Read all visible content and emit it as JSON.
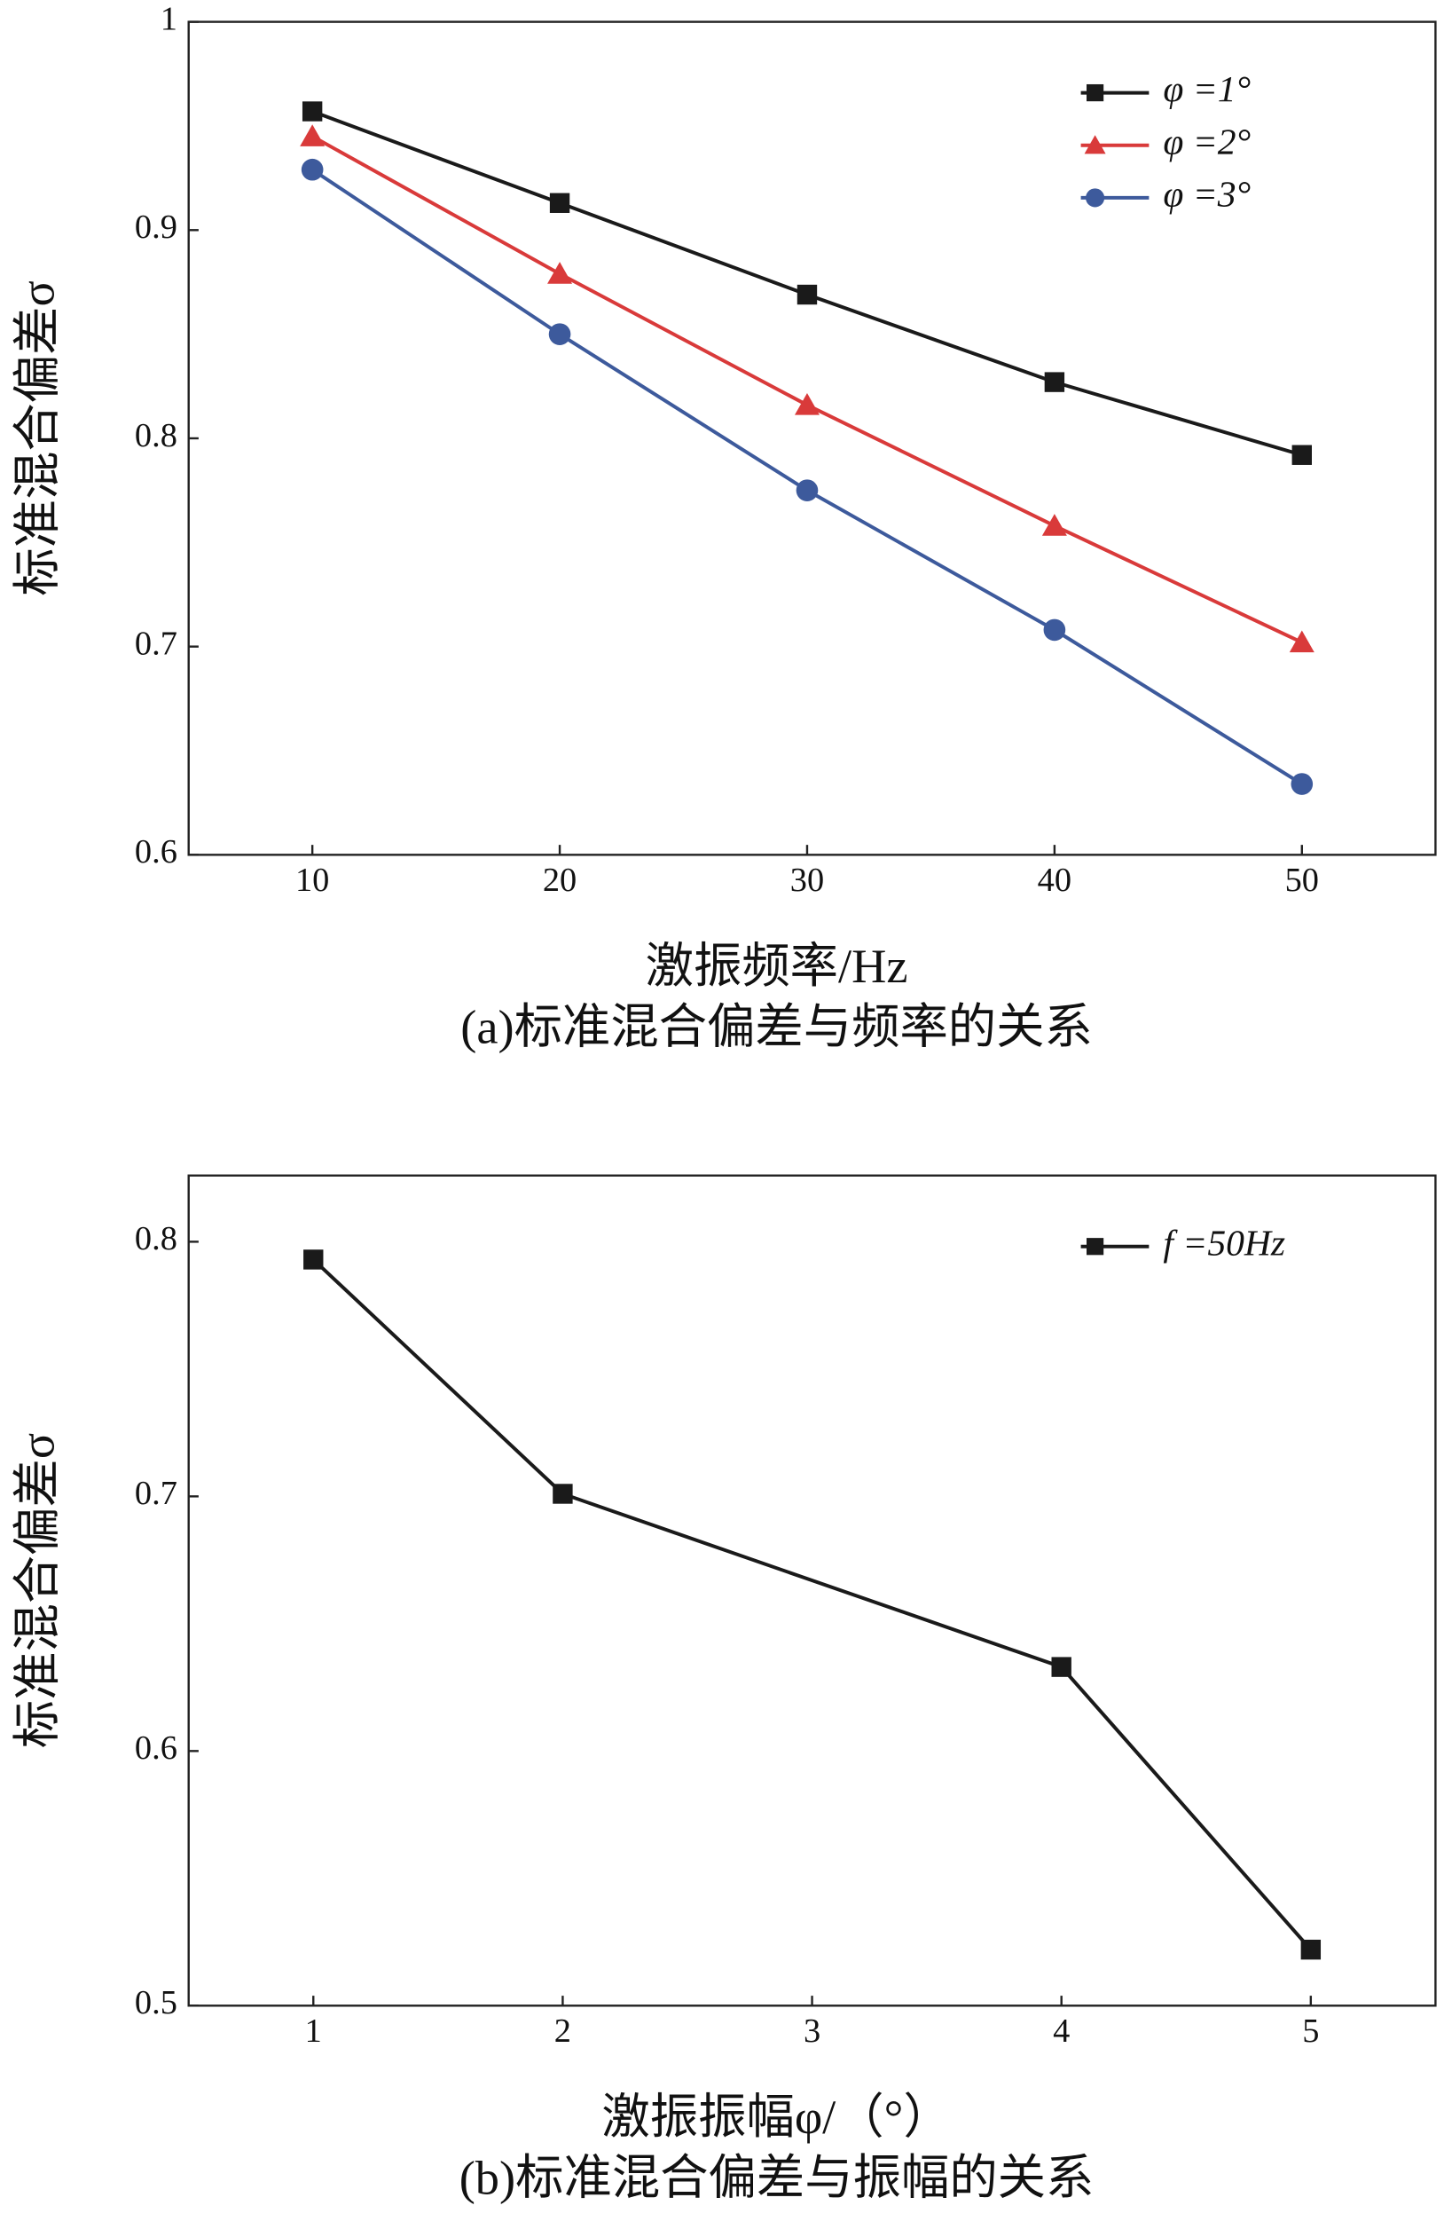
{
  "chart_data": [
    {
      "type": "line",
      "caption": "(a)标准混合偏差与频率的关系",
      "x_label": "激振频率/Hz",
      "y_label": "标准混合偏差σ",
      "x": [
        10,
        20,
        30,
        40,
        50
      ],
      "xlim": [
        5,
        55.4
      ],
      "xticks": [
        10,
        20,
        30,
        40,
        50
      ],
      "ylim": [
        0.6,
        1.0
      ],
      "yticks": [
        0.6,
        0.7,
        0.8,
        0.9,
        1.0
      ],
      "legend": "upper right",
      "series": [
        {
          "name": "φ =1°",
          "color": "#1a1a1a",
          "marker": "square",
          "values": [
            0.957,
            0.913,
            0.869,
            0.827,
            0.792
          ]
        },
        {
          "name": "φ =2°",
          "color": "#d93a3a",
          "marker": "triangle",
          "values": [
            0.945,
            0.879,
            0.816,
            0.758,
            0.702
          ]
        },
        {
          "name": "φ =3°",
          "color": "#3d5a9c",
          "marker": "circle",
          "values": [
            0.929,
            0.85,
            0.775,
            0.708,
            0.634
          ]
        }
      ]
    },
    {
      "type": "line",
      "caption": "(b)标准混合偏差与振幅的关系",
      "x_label": "激振振幅φ/（°）",
      "y_label": "标准混合偏差σ",
      "x": [
        1,
        2,
        3,
        4,
        5
      ],
      "xlim": [
        0.5,
        5.5
      ],
      "xticks": [
        1,
        2,
        3,
        4,
        5
      ],
      "ylim": [
        0.5,
        0.826
      ],
      "yticks": [
        0.5,
        0.6,
        0.7,
        0.8
      ],
      "legend": "upper right",
      "series": [
        {
          "name": "f =50Hz",
          "color": "#1a1a1a",
          "marker": "square",
          "values": [
            0.793,
            0.701,
            null,
            0.633,
            0.522
          ]
        }
      ]
    }
  ]
}
